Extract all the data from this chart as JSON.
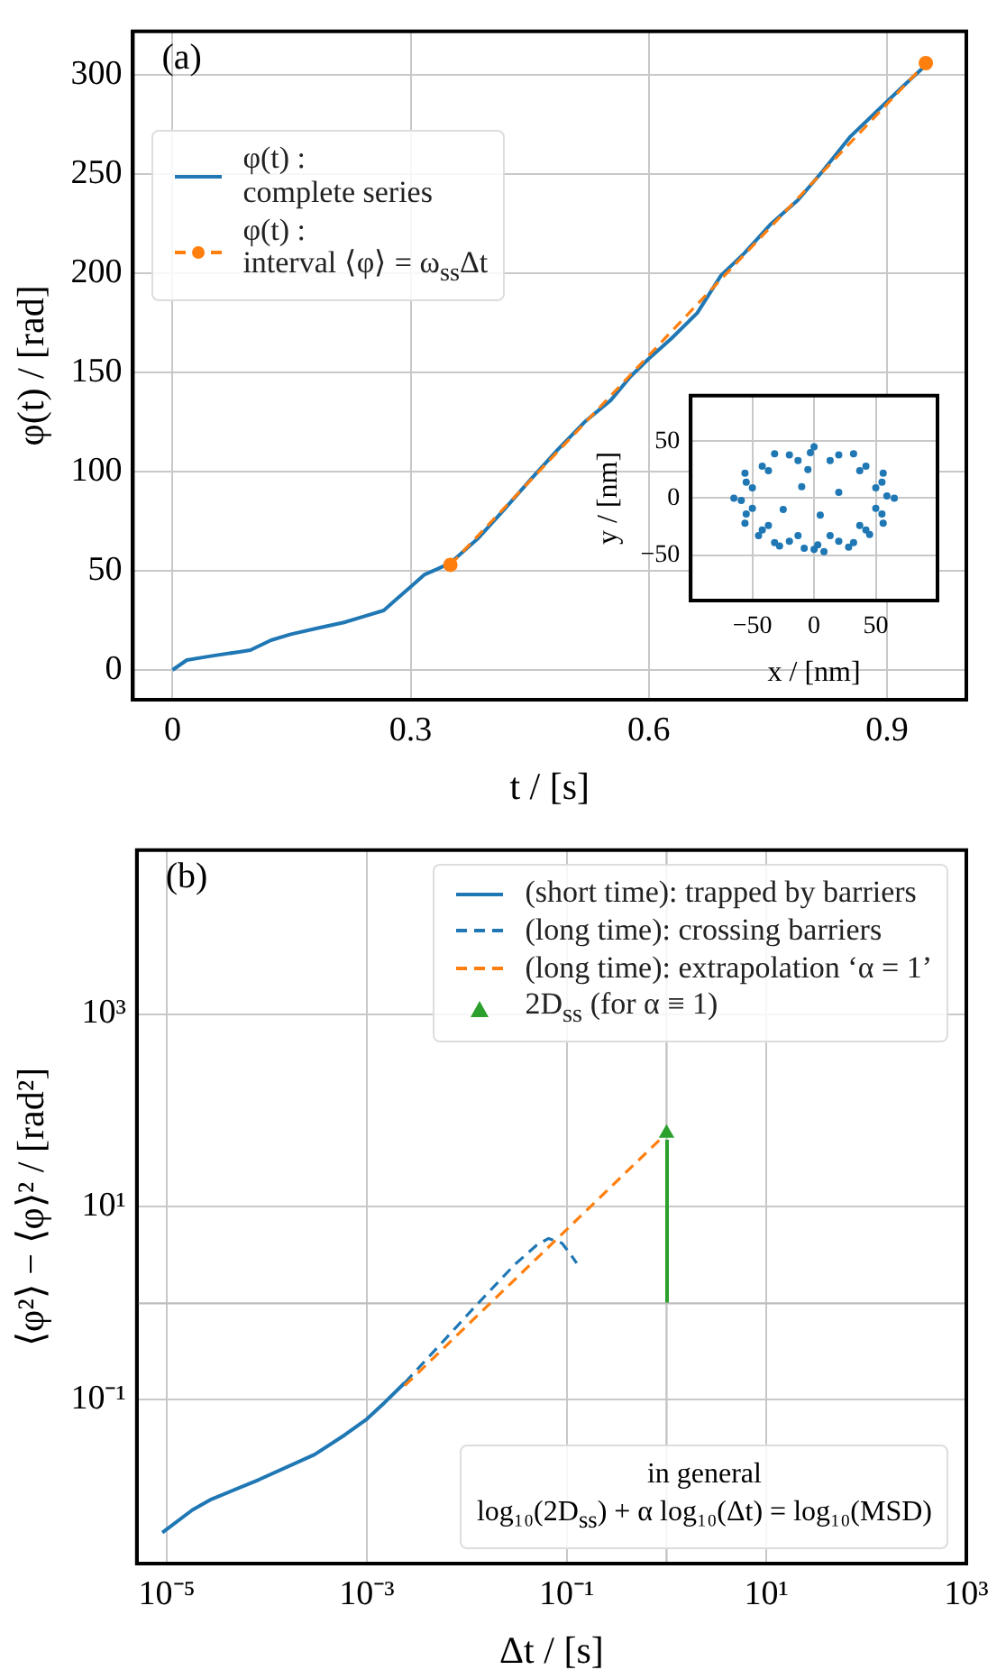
{
  "chart_data": [
    {
      "type": "line",
      "xlabel": "t / [s]",
      "ylabel": "φ(t) / [rad]",
      "xlim": [
        -0.05,
        1.0
      ],
      "ylim": [
        -15,
        322
      ],
      "xticks": [
        0,
        0.3,
        0.6,
        0.9
      ],
      "yticks": [
        0,
        50,
        100,
        150,
        200,
        250,
        300
      ],
      "grid": true,
      "legend": "top left",
      "annotations": [
        "(a)"
      ],
      "series": [
        {
          "name": "φ(t) :\ncomplete series",
          "type": "line",
          "color": "#1f77b4",
          "marker": "none",
          "line_style": "solid",
          "x": [
            0,
            0.018,
            0.048,
            0.082,
            0.098,
            0.124,
            0.149,
            0.182,
            0.216,
            0.241,
            0.266,
            0.283,
            0.3,
            0.317,
            0.334,
            0.35,
            0.384,
            0.418,
            0.451,
            0.485,
            0.519,
            0.552,
            0.577,
            0.6,
            0.628,
            0.661,
            0.691,
            0.72,
            0.754,
            0.788,
            0.82,
            0.854,
            0.888,
            0.922,
            0.949
          ],
          "values": [
            0,
            5,
            7,
            9,
            10,
            15,
            18,
            21,
            24,
            27,
            30,
            36,
            42,
            48,
            51,
            54,
            66,
            81,
            96,
            111,
            125,
            136,
            148,
            157,
            167,
            180,
            199,
            210,
            225,
            237,
            252,
            269,
            282,
            295,
            305
          ]
        },
        {
          "name": "φ(t) :\ninterval ⟨φ⟩ = ω$_{ss}$Δt",
          "type": "line",
          "color": "#ff7f0e",
          "marker": "circle",
          "line_style": "dashed",
          "x": [
            0.35,
            0.949
          ],
          "values": [
            53,
            306
          ]
        }
      ]
    },
    {
      "type": "scatter",
      "xlabel": "x / [nm]",
      "ylabel": "y / [nm]",
      "xlim": [
        -100,
        100
      ],
      "ylim": [
        -90,
        90
      ],
      "xticks": [
        {
          "value": -50,
          "label": "−50"
        },
        0,
        50
      ],
      "yticks": [
        {
          "value": -50,
          "label": "−50"
        },
        0,
        50
      ],
      "grid": true,
      "series": [
        {
          "color": "#1f77b4",
          "marker": "circle",
          "x": [
            65,
            56,
            32,
            0,
            -32,
            -56,
            -65,
            -56,
            -32,
            0,
            32,
            56,
            50,
            37,
            13,
            -13,
            -37,
            -50,
            -50,
            -37,
            -13,
            13,
            37,
            50,
            59,
            42,
            -3,
            -42,
            -59,
            -42,
            3,
            42,
            55,
            -55,
            -55,
            55,
            -20,
            -20,
            20,
            20,
            -10,
            5,
            -25,
            20,
            -5,
            -8,
            8,
            -28,
            28,
            -45,
            45
          ],
          "values": [
            0,
            22,
            39,
            45,
            39,
            22,
            0,
            -22,
            -39,
            -45,
            -39,
            -22,
            9,
            24,
            33,
            33,
            24,
            9,
            -9,
            -24,
            -33,
            -33,
            -24,
            -9,
            2,
            28,
            40,
            28,
            -2,
            -28,
            -41,
            -28,
            14,
            14,
            -14,
            -14,
            38,
            -38,
            38,
            -38,
            10,
            -15,
            -10,
            5,
            25,
            -44,
            -47,
            -42,
            -43,
            -33,
            -32
          ]
        }
      ]
    },
    {
      "type": "line",
      "xlabel": "Δt / [s]",
      "ylabel": "⟨φ²⟩ − ⟨φ⟩² / [rad²]",
      "log": "xy",
      "xlim": [
        5e-06,
        1000
      ],
      "ylim": [
        0.002,
        50000
      ],
      "xticks": [
        {
          "value": 1e-05,
          "label": "10⁻⁵"
        },
        {
          "value": 0.001,
          "label": "10⁻³"
        },
        {
          "value": 0.1,
          "label": "10⁻¹"
        },
        {
          "value": 10,
          "label": "10¹"
        },
        {
          "value": 1000,
          "label": "10³"
        }
      ],
      "yticks": [
        {
          "value": 0.1,
          "label": "10⁻¹"
        },
        {
          "value": 10,
          "label": "10¹"
        },
        {
          "value": 1000,
          "label": "10³"
        }
      ],
      "grid": true,
      "legend": "top right",
      "annotations": [
        "(b)",
        "in general",
        "log₁₀(2D$_{ss}$) + α log₁₀(Δt) = log₁₀(MSD)"
      ],
      "ref_lines": [
        {
          "axis": "x",
          "value": 1,
          "color": "#c4c4c4"
        },
        {
          "axis": "y",
          "value": 1,
          "color": "#bcbcbc"
        }
      ],
      "series": [
        {
          "name": "(short time): trapped by barriers",
          "type": "line",
          "color": "#1f77b4",
          "marker": "none",
          "line_style": "solid",
          "x": [
            9e-06,
            1.8e-05,
            2.8e-05,
            8.3e-05,
            0.0003,
            0.0006,
            0.001,
            0.0015,
            0.0024
          ],
          "values": [
            0.0042,
            0.0072,
            0.0093,
            0.0148,
            0.027,
            0.043,
            0.063,
            0.093,
            0.15
          ]
        },
        {
          "name": "(long time): crossing barriers",
          "type": "line",
          "color": "#1f77b4",
          "marker": "none",
          "line_style": "dashed",
          "x": [
            0.0024,
            0.005,
            0.013,
            0.03,
            0.05,
            0.066,
            0.09,
            0.11,
            0.126
          ],
          "values": [
            0.15,
            0.34,
            1.0,
            2.5,
            4.0,
            4.7,
            4.2,
            3.2,
            2.6
          ]
        },
        {
          "name": "(long time): extrapolation ‘α = 1’",
          "type": "line",
          "color": "#ff7f0e",
          "marker": "none",
          "line_style": "dashed",
          "x": [
            0.0024,
            1
          ],
          "values": [
            0.14,
            58
          ]
        },
        {
          "name": "2D$_{ss}$ (for α ≡ 1)",
          "type": "scatter",
          "color": "#2ca02c",
          "marker": "triangle",
          "x": [
            1
          ],
          "values": [
            58
          ]
        }
      ]
    }
  ]
}
